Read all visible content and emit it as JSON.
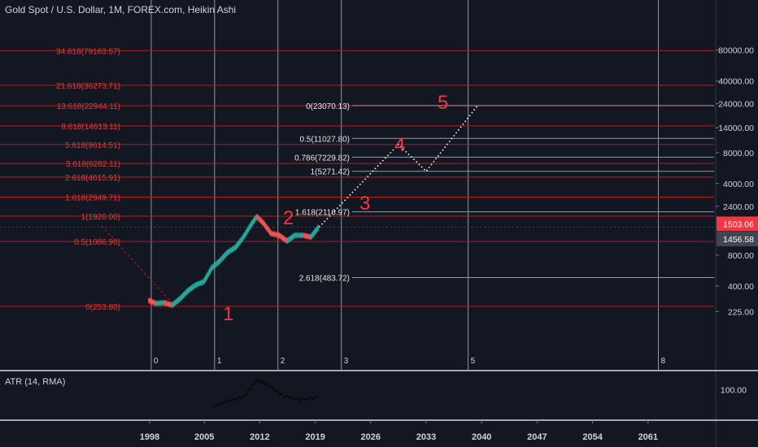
{
  "header": {
    "title": "Gold Spot / U.S. Dollar, 1M, FOREX.com, Heikin Ashi"
  },
  "atr": {
    "label": "ATR (14, RMA)",
    "axis_tick": "100.00"
  },
  "price_badges": {
    "current": "1503.06",
    "secondary": "1456.58"
  },
  "colors": {
    "background": "#131722",
    "fib_red": "#b71c1c",
    "fib_white": "#9598a1",
    "wave_label": "#f23645",
    "candle_up": "#26a69a",
    "candle_down": "#ef5350",
    "badge_red": "#f23645",
    "badge_gray": "#434651"
  },
  "chart_data": {
    "type": "line",
    "y_scale": "log",
    "ylim": [
      180,
      84000
    ],
    "x_axis_labels": [
      "1998",
      "2005",
      "2012",
      "2019",
      "2026",
      "2033",
      "2040",
      "2047",
      "2054",
      "2061"
    ],
    "y_axis_labels": [
      "80000.00",
      "40000.00",
      "24000.00",
      "14000.00",
      "8000.00",
      "4000.00",
      "2400.00",
      "1503.06",
      "1456.58",
      "800.00",
      "400.00",
      "225.00"
    ],
    "time_zone_labels": [
      "0",
      "1",
      "2",
      "3",
      "5",
      "8"
    ],
    "fib_extension_levels": [
      {
        "label": "34.618(79183.57)",
        "price": 79183.57
      },
      {
        "label": "21.618(36273.71)",
        "price": 36273.71
      },
      {
        "label": "13.618(22944.11)",
        "price": 22944.11
      },
      {
        "label": "8.618(14613.11)",
        "price": 14613.11
      },
      {
        "label": "5.618(9614.51)",
        "price": 9614.51
      },
      {
        "label": "3.618(6282.11)",
        "price": 6282.11
      },
      {
        "label": "2.618(4615.91)",
        "price": 4615.91
      },
      {
        "label": "1.618(2949.71)",
        "price": 2949.71
      },
      {
        "label": "1(1920.00)",
        "price": 1920.0
      },
      {
        "label": "0.5(1086.90)",
        "price": 1086.9
      },
      {
        "label": "0(253.80)",
        "price": 253.8
      }
    ],
    "fib_projection_levels": [
      {
        "label": "0(23070.13)",
        "price": 23070.13
      },
      {
        "label": "0.5(11027.80)",
        "price": 11027.8
      },
      {
        "label": "0.786(7229.82)",
        "price": 7229.82
      },
      {
        "label": "1(5271.42)",
        "price": 5271.42
      },
      {
        "label": "1.618(2116.97)",
        "price": 2116.97
      },
      {
        "label": "2.618(483.72)",
        "price": 483.72
      }
    ],
    "wave_labels": [
      "1",
      "2",
      "3",
      "4",
      "5"
    ],
    "projection_path": [
      {
        "year": 2019.5,
        "price": 1503
      },
      {
        "year": 2029.5,
        "price": 9614
      },
      {
        "year": 2033,
        "price": 5271
      },
      {
        "year": 2039.5,
        "price": 23070
      }
    ],
    "gold_price_approx": [
      {
        "year": 1998.0,
        "price": 290
      },
      {
        "year": 1999.0,
        "price": 270
      },
      {
        "year": 2000.0,
        "price": 275
      },
      {
        "year": 2001.0,
        "price": 260
      },
      {
        "year": 2002.0,
        "price": 300
      },
      {
        "year": 2003.0,
        "price": 360
      },
      {
        "year": 2004.0,
        "price": 410
      },
      {
        "year": 2005.0,
        "price": 440
      },
      {
        "year": 2006.0,
        "price": 600
      },
      {
        "year": 2007.0,
        "price": 700
      },
      {
        "year": 2008.0,
        "price": 850
      },
      {
        "year": 2009.0,
        "price": 950
      },
      {
        "year": 2010.0,
        "price": 1200
      },
      {
        "year": 2011.0,
        "price": 1600
      },
      {
        "year": 2011.7,
        "price": 1900
      },
      {
        "year": 2012.5,
        "price": 1650
      },
      {
        "year": 2013.5,
        "price": 1300
      },
      {
        "year": 2014.5,
        "price": 1250
      },
      {
        "year": 2015.5,
        "price": 1100
      },
      {
        "year": 2016.5,
        "price": 1250
      },
      {
        "year": 2017.5,
        "price": 1250
      },
      {
        "year": 2018.5,
        "price": 1200
      },
      {
        "year": 2019.5,
        "price": 1500
      }
    ],
    "atr_approx": [
      {
        "year": 2006,
        "value": 30
      },
      {
        "year": 2008,
        "value": 55
      },
      {
        "year": 2010,
        "value": 70
      },
      {
        "year": 2011.7,
        "value": 140
      },
      {
        "year": 2013,
        "value": 120
      },
      {
        "year": 2015,
        "value": 75
      },
      {
        "year": 2017,
        "value": 60
      },
      {
        "year": 2019.5,
        "value": 70
      }
    ]
  }
}
